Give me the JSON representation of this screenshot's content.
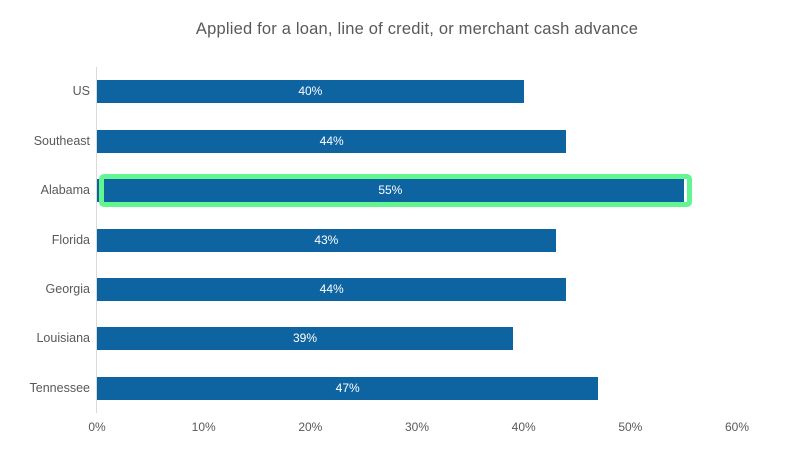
{
  "chart_data": {
    "type": "bar",
    "orientation": "horizontal",
    "title": "Applied for a loan, line of credit, or merchant cash advance",
    "categories": [
      "US",
      "Southeast",
      "Alabama",
      "Florida",
      "Georgia",
      "Louisiana",
      "Tennessee"
    ],
    "values": [
      40,
      44,
      55,
      43,
      44,
      39,
      47
    ],
    "data_labels": [
      "40%",
      "44%",
      "55%",
      "43%",
      "44%",
      "39%",
      "47%"
    ],
    "data_label_position": "center",
    "highlighted_category": "Alabama",
    "highlight_style": "rounded-outline",
    "x_ticks": [
      "0%",
      "10%",
      "20%",
      "30%",
      "40%",
      "50%",
      "60%"
    ],
    "x_tick_values": [
      0,
      10,
      20,
      30,
      40,
      50,
      60
    ],
    "xlim": [
      0,
      60
    ],
    "xlabel": "",
    "ylabel": "",
    "grid": false,
    "legend_position": "none",
    "colors": {
      "bar": "#0E64A0",
      "highlight_outline": "#63F58F",
      "data_label": "#FFFFFF",
      "axis_line": "#D9D9D9",
      "axis_text": "#595959",
      "title_text": "#595959",
      "background": "#FFFFFF"
    }
  }
}
